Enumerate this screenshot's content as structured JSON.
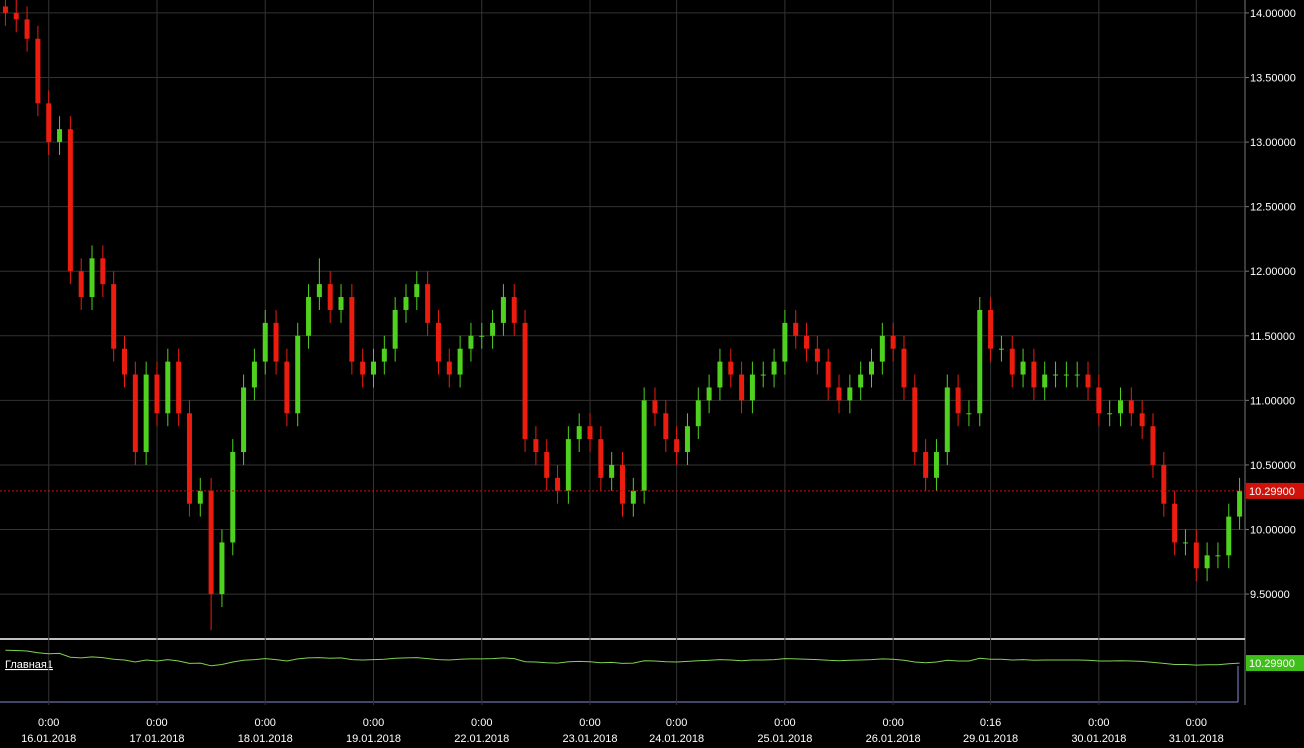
{
  "chart_data": {
    "type": "candlestick",
    "up_color": "#4fd11f",
    "down_color": "#ec1c0f",
    "grid": true,
    "ylim": [
      9.16,
      14.1
    ],
    "yticks": [
      {
        "value": 14,
        "label": "14.00000"
      },
      {
        "value": 13.5,
        "label": "13.50000"
      },
      {
        "value": 13,
        "label": "13.00000"
      },
      {
        "value": 12.5,
        "label": "12.50000"
      },
      {
        "value": 12,
        "label": "12.00000"
      },
      {
        "value": 11.5,
        "label": "11.50000"
      },
      {
        "value": 11,
        "label": "11.00000"
      },
      {
        "value": 10.5,
        "label": "10.50000"
      },
      {
        "value": 10,
        "label": "10.00000"
      },
      {
        "value": 9.5,
        "label": "9.50000"
      }
    ],
    "current_price": {
      "value": 10.299,
      "label": "10.29900"
    },
    "navigator_label": "Главная1",
    "categories": [
      null,
      null,
      null,
      null,
      {
        "time": "0:00",
        "date": "16.01.2018"
      },
      null,
      null,
      null,
      null,
      null,
      null,
      null,
      null,
      null,
      {
        "time": "0:00",
        "date": "17.01.2018"
      },
      null,
      null,
      null,
      null,
      null,
      null,
      null,
      null,
      null,
      {
        "time": "0:00",
        "date": "18.01.2018"
      },
      null,
      null,
      null,
      null,
      null,
      null,
      null,
      null,
      null,
      {
        "time": "0:00",
        "date": "19.01.2018"
      },
      null,
      null,
      null,
      null,
      null,
      null,
      null,
      null,
      null,
      {
        "time": "0:00",
        "date": "22.01.2018"
      },
      null,
      null,
      null,
      null,
      null,
      null,
      null,
      null,
      null,
      {
        "time": "0:00",
        "date": "23.01.2018"
      },
      null,
      null,
      null,
      null,
      null,
      null,
      null,
      {
        "time": "0:00",
        "date": "24.01.2018"
      },
      null,
      null,
      null,
      null,
      null,
      null,
      null,
      null,
      null,
      {
        "time": "0:00",
        "date": "25.01.2018"
      },
      null,
      null,
      null,
      null,
      null,
      null,
      null,
      null,
      null,
      {
        "time": "0:00",
        "date": "26.01.2018"
      },
      null,
      null,
      null,
      null,
      null,
      null,
      null,
      null,
      {
        "time": "0:16",
        "date": "29.01.2018"
      },
      null,
      null,
      null,
      null,
      null,
      null,
      null,
      null,
      null,
      {
        "time": "0:00",
        "date": "30.01.2018"
      },
      null,
      null,
      null,
      null,
      null,
      null,
      null,
      null,
      {
        "time": "0:00",
        "date": "31.01.2018"
      },
      null,
      null,
      null,
      null
    ],
    "open": [
      14.05,
      14.0,
      13.95,
      13.8,
      13.3,
      13.0,
      13.1,
      12.0,
      11.8,
      12.1,
      11.9,
      11.4,
      11.2,
      10.6,
      11.2,
      10.9,
      11.3,
      10.9,
      10.2,
      10.3,
      9.5,
      9.9,
      10.6,
      11.1,
      11.3,
      11.6,
      11.3,
      10.9,
      11.5,
      11.8,
      11.9,
      11.7,
      11.8,
      11.3,
      11.2,
      11.3,
      11.4,
      11.7,
      11.8,
      11.9,
      11.6,
      11.3,
      11.2,
      11.4,
      11.5,
      11.5,
      11.6,
      11.8,
      11.6,
      10.7,
      10.6,
      10.4,
      10.3,
      10.7,
      10.8,
      10.7,
      10.4,
      10.5,
      10.2,
      10.3,
      11.0,
      10.9,
      10.7,
      10.6,
      10.8,
      11.0,
      11.1,
      11.3,
      11.2,
      11.0,
      11.2,
      11.2,
      11.3,
      11.6,
      11.5,
      11.4,
      11.3,
      11.1,
      11.0,
      11.1,
      11.2,
      11.3,
      11.5,
      11.4,
      11.1,
      10.6,
      10.4,
      10.6,
      11.1,
      10.9,
      10.9,
      11.7,
      11.4,
      11.4,
      11.2,
      11.3,
      11.1,
      11.2,
      11.2,
      11.2,
      11.2,
      11.1,
      10.9,
      10.9,
      11.0,
      10.9,
      10.8,
      10.5,
      10.2,
      9.9,
      9.9,
      9.7,
      9.8,
      9.8,
      10.1
    ],
    "high": [
      14.1,
      14.1,
      14.05,
      13.9,
      13.4,
      13.2,
      13.2,
      12.1,
      12.2,
      12.2,
      12.0,
      11.5,
      11.3,
      11.3,
      11.3,
      11.4,
      11.4,
      11.0,
      10.4,
      10.4,
      10.0,
      10.7,
      11.2,
      11.4,
      11.7,
      11.7,
      11.4,
      11.6,
      11.9,
      12.1,
      12.0,
      11.9,
      11.9,
      11.4,
      11.4,
      11.5,
      11.8,
      11.9,
      12.0,
      12.0,
      11.7,
      11.4,
      11.5,
      11.6,
      11.6,
      11.7,
      11.9,
      11.9,
      11.7,
      10.8,
      10.7,
      10.5,
      10.8,
      10.9,
      10.9,
      10.8,
      10.6,
      10.6,
      10.4,
      11.1,
      11.1,
      11.0,
      10.8,
      10.9,
      11.1,
      11.2,
      11.4,
      11.4,
      11.3,
      11.3,
      11.3,
      11.4,
      11.7,
      11.7,
      11.6,
      11.5,
      11.4,
      11.2,
      11.2,
      11.3,
      11.4,
      11.6,
      11.6,
      11.5,
      11.2,
      10.7,
      10.7,
      11.2,
      11.2,
      11.0,
      11.8,
      11.8,
      11.5,
      11.5,
      11.4,
      11.4,
      11.3,
      11.3,
      11.3,
      11.3,
      11.3,
      11.2,
      11.0,
      11.1,
      11.1,
      11.0,
      10.9,
      10.6,
      10.3,
      10.0,
      10.0,
      9.9,
      9.9,
      10.2,
      10.4
    ],
    "low": [
      13.9,
      13.85,
      13.7,
      13.2,
      12.9,
      12.9,
      11.9,
      11.7,
      11.7,
      11.8,
      11.3,
      11.1,
      10.5,
      10.5,
      10.8,
      10.8,
      10.8,
      10.1,
      10.1,
      9.22,
      9.4,
      9.8,
      10.5,
      11.0,
      11.2,
      11.2,
      10.8,
      10.8,
      11.4,
      11.7,
      11.6,
      11.6,
      11.2,
      11.1,
      11.1,
      11.2,
      11.3,
      11.6,
      11.7,
      11.5,
      11.2,
      11.1,
      11.1,
      11.3,
      11.4,
      11.4,
      11.5,
      11.5,
      10.6,
      10.5,
      10.3,
      10.2,
      10.2,
      10.6,
      10.6,
      10.3,
      10.3,
      10.1,
      10.1,
      10.2,
      10.8,
      10.6,
      10.5,
      10.5,
      10.7,
      10.9,
      11.0,
      11.1,
      10.9,
      10.9,
      11.1,
      11.1,
      11.2,
      11.4,
      11.3,
      11.2,
      11.0,
      10.9,
      10.9,
      11.0,
      11.1,
      11.2,
      11.3,
      11.0,
      10.5,
      10.3,
      10.3,
      10.5,
      10.8,
      10.8,
      10.8,
      11.3,
      11.3,
      11.1,
      11.1,
      11.0,
      11.0,
      11.1,
      11.1,
      11.1,
      11.0,
      10.8,
      10.8,
      10.8,
      10.8,
      10.7,
      10.4,
      10.1,
      9.8,
      9.8,
      9.6,
      9.6,
      9.7,
      9.7,
      10.0
    ],
    "close": [
      14.0,
      13.95,
      13.8,
      13.3,
      13.0,
      13.1,
      12.0,
      11.8,
      12.1,
      11.9,
      11.4,
      11.2,
      10.6,
      11.2,
      10.9,
      11.3,
      10.9,
      10.2,
      10.3,
      9.5,
      9.9,
      10.6,
      11.1,
      11.3,
      11.6,
      11.3,
      10.9,
      11.5,
      11.8,
      11.9,
      11.7,
      11.8,
      11.3,
      11.2,
      11.3,
      11.4,
      11.7,
      11.8,
      11.9,
      11.6,
      11.3,
      11.2,
      11.4,
      11.5,
      11.5,
      11.6,
      11.8,
      11.6,
      10.7,
      10.6,
      10.4,
      10.3,
      10.7,
      10.8,
      10.7,
      10.4,
      10.5,
      10.2,
      10.3,
      11.0,
      10.9,
      10.7,
      10.6,
      10.8,
      11.0,
      11.1,
      11.3,
      11.2,
      11.0,
      11.2,
      11.2,
      11.3,
      11.6,
      11.5,
      11.4,
      11.3,
      11.1,
      11.0,
      11.1,
      11.2,
      11.3,
      11.5,
      11.4,
      11.1,
      10.6,
      10.4,
      10.6,
      11.1,
      10.9,
      10.9,
      11.7,
      11.4,
      11.4,
      11.2,
      11.3,
      11.1,
      11.2,
      11.2,
      11.2,
      11.2,
      11.1,
      10.9,
      10.9,
      11.0,
      10.9,
      10.8,
      10.5,
      10.2,
      9.9,
      9.9,
      9.7,
      9.8,
      9.8,
      10.1,
      10.299
    ]
  }
}
